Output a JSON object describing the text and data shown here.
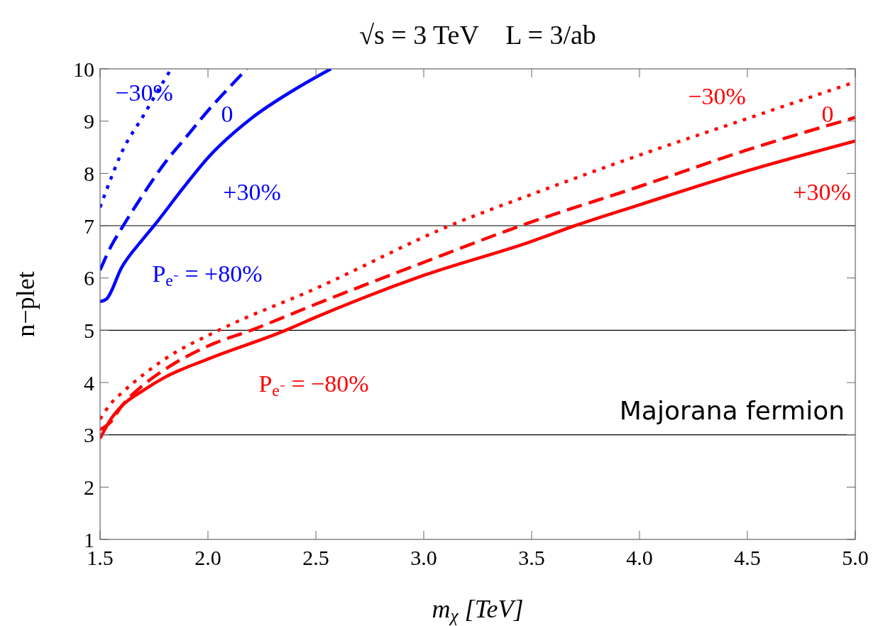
{
  "chart_data": {
    "type": "line",
    "title": "√s = 3 TeV    L = 3/ab",
    "xlabel": "m$_{χ}$ [TeV]",
    "ylabel": "n−plet",
    "xlim": [
      1.5,
      5.0
    ],
    "xticks": [
      {
        "value": 1.5,
        "label": "1.5"
      },
      {
        "value": 2.0,
        "label": "2.0"
      },
      {
        "value": 2.5,
        "label": "2.5"
      },
      {
        "value": 3.0,
        "label": "3.0"
      },
      {
        "value": 3.5,
        "label": "3.5"
      },
      {
        "value": 4.0,
        "label": "4.0"
      },
      {
        "value": 4.5,
        "label": "4.5"
      },
      {
        "value": 5.0,
        "label": "5.0"
      }
    ],
    "ylim": [
      1,
      10
    ],
    "yticks": [
      1,
      2,
      3,
      4,
      5,
      6,
      7,
      8,
      9,
      10
    ],
    "grid": false,
    "series": [
      {
        "color": "#0000ff",
        "line_style": "solid",
        "x": [
          1.5,
          1.53,
          1.6,
          1.7,
          1.75,
          1.9,
          2.0,
          2.2,
          2.4,
          2.57
        ],
        "values": [
          5.55,
          5.6,
          6.2,
          6.75,
          7.0,
          7.8,
          8.3,
          9.05,
          9.6,
          10
        ]
      },
      {
        "color": "#0000ff",
        "line_style": "dashed",
        "x": [
          1.5,
          1.55,
          1.6,
          1.7,
          1.8,
          1.9,
          2.0,
          2.1,
          2.18
        ],
        "values": [
          6.15,
          6.6,
          6.95,
          7.6,
          8.2,
          8.7,
          9.2,
          9.65,
          10
        ]
      },
      {
        "color": "#0000ff",
        "line_style": "dotted",
        "x": [
          1.5,
          1.55,
          1.6,
          1.7,
          1.8,
          1.83
        ],
        "values": [
          7.35,
          7.9,
          8.4,
          9.1,
          9.8,
          10
        ]
      },
      {
        "color": "#ff0000",
        "line_style": "solid",
        "x": [
          1.5,
          1.55,
          1.6,
          1.7,
          1.8,
          2.0,
          2.36,
          2.5,
          3.0,
          3.5,
          3.7,
          4.0,
          4.5,
          5.0
        ],
        "values": [
          2.93,
          3.3,
          3.55,
          3.85,
          4.1,
          4.45,
          5.0,
          5.25,
          6.05,
          6.7,
          7.0,
          7.4,
          8.05,
          8.62
        ]
      },
      {
        "color": "#ff0000",
        "line_style": "dashed",
        "x": [
          1.5,
          1.55,
          1.6,
          1.7,
          1.8,
          2.0,
          2.2,
          2.5,
          3.0,
          3.45,
          4.0,
          4.5,
          5.0
        ],
        "values": [
          3.1,
          3.25,
          3.55,
          3.95,
          4.25,
          4.7,
          5.0,
          5.5,
          6.3,
          7.0,
          7.75,
          8.45,
          9.07
        ]
      },
      {
        "color": "#ff0000",
        "line_style": "dotted",
        "x": [
          1.5,
          1.55,
          1.6,
          1.7,
          1.8,
          2.05,
          2.5,
          3.12,
          3.5,
          4.0,
          4.5,
          5.0
        ],
        "values": [
          3.3,
          3.6,
          3.8,
          4.15,
          4.45,
          5.0,
          5.8,
          7.0,
          7.6,
          8.35,
          9.05,
          9.75
        ]
      }
    ],
    "ref_lines": [
      {
        "axis": "y",
        "value": 3,
        "color": "#000000"
      },
      {
        "axis": "y",
        "value": 5,
        "color": "#000000"
      },
      {
        "axis": "y",
        "value": 7,
        "color": "#000000"
      }
    ],
    "annotations": [
      "−30%",
      "0",
      "+30%",
      "P$_{e⁻}$ = +80%",
      "−30%",
      "0",
      "+30%",
      "P$_{e⁻}$ = −80%",
      "Majorana fermion"
    ]
  }
}
